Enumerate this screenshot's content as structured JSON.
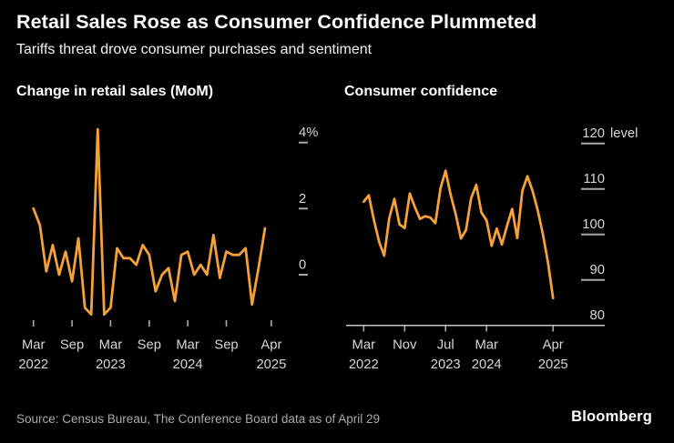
{
  "header": {
    "title": "Retail Sales Rose as Consumer Confidence Plummeted",
    "subtitle": "Tariffs threat drove consumer purchases and sentiment"
  },
  "footer": {
    "source": "Source: Census Bureau, The Conference Board data as of April 29",
    "brand": "Bloomberg"
  },
  "colors": {
    "background": "#000000",
    "line": "#f5a13a",
    "title_text": "#ffffff",
    "axis_text": "#d6d6d6",
    "tick": "#a9a9a9",
    "baseline": "#c7c7c7",
    "source_text": "#a9a9a9"
  },
  "chart_data": [
    {
      "type": "line",
      "title": "Change in retail sales (MoM)",
      "unit": "%",
      "grid": false,
      "legend": "none",
      "ylim": [
        -1.5,
        4.6
      ],
      "x": [
        "Mar 2022",
        "Apr 2022",
        "May 2022",
        "Jun 2022",
        "Jul 2022",
        "Aug 2022",
        "Sep 2022",
        "Oct 2022",
        "Nov 2022",
        "Dec 2022",
        "Jan 2023",
        "Feb 2023",
        "Mar 2023",
        "Apr 2023",
        "May 2023",
        "Jun 2023",
        "Jul 2023",
        "Aug 2023",
        "Sep 2023",
        "Oct 2023",
        "Nov 2023",
        "Dec 2023",
        "Jan 2024",
        "Feb 2024",
        "Mar 2024",
        "Apr 2024",
        "May 2024",
        "Jun 2024",
        "Jul 2024",
        "Aug 2024",
        "Sep 2024",
        "Oct 2024",
        "Nov 2024",
        "Dec 2024",
        "Jan 2025",
        "Feb 2025",
        "Mar 2025"
      ],
      "values": [
        2.0,
        1.5,
        0.1,
        0.9,
        0.0,
        0.7,
        -0.2,
        1.1,
        -1.0,
        -1.2,
        4.4,
        -1.2,
        -1.0,
        0.8,
        0.5,
        0.5,
        0.3,
        0.9,
        0.6,
        -0.5,
        0.0,
        0.2,
        -0.8,
        0.6,
        0.7,
        0.0,
        0.3,
        0.0,
        1.2,
        -0.1,
        0.7,
        0.6,
        0.6,
        0.8,
        -0.9,
        0.2,
        1.4
      ],
      "y_ticks": [
        {
          "label": "4%",
          "value": 4
        },
        {
          "label": "2",
          "value": 2
        },
        {
          "label": "0",
          "value": 0
        }
      ],
      "x_ticks": [
        {
          "line1": "Mar",
          "line2": "2022",
          "offset": 0
        },
        {
          "line1": "Sep",
          "offset": 6
        },
        {
          "line1": "Mar",
          "line2": "2023",
          "offset": 12
        },
        {
          "line1": "Sep",
          "offset": 18
        },
        {
          "line1": "Mar",
          "line2": "2024",
          "offset": 24
        },
        {
          "line1": "Sep",
          "offset": 30
        },
        {
          "line1": "Apr",
          "line2": "2025",
          "offset": 37
        }
      ]
    },
    {
      "type": "line",
      "title": "Consumer confidence",
      "unit": "level",
      "grid": false,
      "legend": "none",
      "ylim": [
        80,
        121
      ],
      "x": [
        "Mar 2022",
        "Apr 2022",
        "May 2022",
        "Jun 2022",
        "Jul 2022",
        "Aug 2022",
        "Sep 2022",
        "Oct 2022",
        "Nov 2022",
        "Dec 2022",
        "Jan 2023",
        "Feb 2023",
        "Mar 2023",
        "Apr 2023",
        "May 2023",
        "Jun 2023",
        "Jul 2023",
        "Aug 2023",
        "Sep 2023",
        "Oct 2023",
        "Nov 2023",
        "Dec 2023",
        "Jan 2024",
        "Feb 2024",
        "Mar 2024",
        "Apr 2024",
        "May 2024",
        "Jun 2024",
        "Jul 2024",
        "Aug 2024",
        "Sep 2024",
        "Oct 2024",
        "Nov 2024",
        "Dec 2024",
        "Jan 2025",
        "Feb 2025",
        "Mar 2025",
        "Apr 2025"
      ],
      "values": [
        107.2,
        108.6,
        103.2,
        98.4,
        95.3,
        103.6,
        107.8,
        102.2,
        101.4,
        109.0,
        106.0,
        103.4,
        104.0,
        103.7,
        102.5,
        110.1,
        114.0,
        108.7,
        104.3,
        99.1,
        101.0,
        108.0,
        110.9,
        104.8,
        103.1,
        97.5,
        101.3,
        97.8,
        101.9,
        105.6,
        99.2,
        109.6,
        112.8,
        109.5,
        105.3,
        100.1,
        93.9,
        86.0
      ],
      "y_ticks": [
        {
          "label": "120",
          "suffix": "level",
          "value": 120
        },
        {
          "label": "110",
          "value": 110
        },
        {
          "label": "100",
          "value": 100
        },
        {
          "label": "90",
          "value": 90
        },
        {
          "label": "80",
          "value": 80,
          "no_dash": true
        }
      ],
      "x_ticks": [
        {
          "line1": "Mar",
          "line2": "2022",
          "offset": 0
        },
        {
          "line1": "Nov",
          "offset": 8
        },
        {
          "line1": "Jul",
          "line2": "2023",
          "offset": 16
        },
        {
          "line1": "Mar",
          "line2": "2024",
          "offset": 24
        },
        {
          "line1": "Apr",
          "line2": "2025",
          "offset": 37
        }
      ]
    }
  ]
}
